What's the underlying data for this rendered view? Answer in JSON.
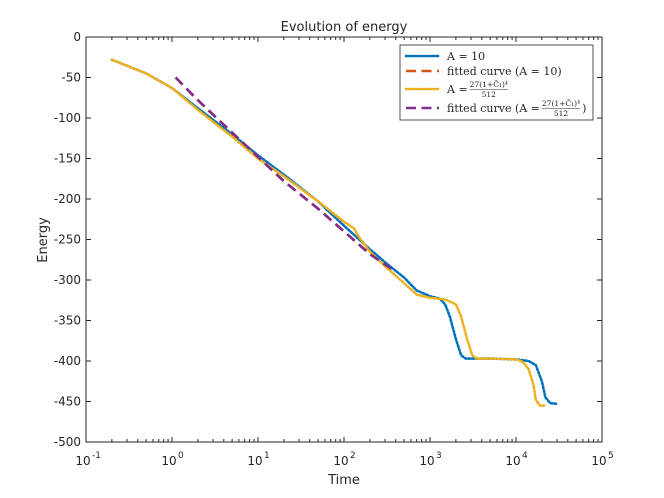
{
  "chart_data": {
    "type": "line",
    "title": "Evolution of energy",
    "xlabel": "Time",
    "ylabel": "Energy",
    "xscale": "log",
    "xlim": [
      0.1,
      100000
    ],
    "ylim": [
      -500,
      0
    ],
    "xticks": [
      {
        "value": 0.1,
        "base": "10",
        "exp": "-1"
      },
      {
        "value": 1,
        "base": "10",
        "exp": "0"
      },
      {
        "value": 10,
        "base": "10",
        "exp": "1"
      },
      {
        "value": 100,
        "base": "10",
        "exp": "2"
      },
      {
        "value": 1000,
        "base": "10",
        "exp": "3"
      },
      {
        "value": 10000,
        "base": "10",
        "exp": "4"
      },
      {
        "value": 100000,
        "base": "10",
        "exp": "5"
      }
    ],
    "yticks": [
      0,
      -50,
      -100,
      -150,
      -200,
      -250,
      -300,
      -350,
      -400,
      -450,
      -500
    ],
    "grid": false,
    "legend_position": "top-right",
    "series": [
      {
        "name": "A = 10",
        "legend": {
          "main": "A = 10"
        },
        "color": "#0072BD",
        "style": "dotted",
        "points": [
          [
            0.2,
            -28
          ],
          [
            0.5,
            -45
          ],
          [
            1,
            -63
          ],
          [
            2,
            -88
          ],
          [
            5,
            -120
          ],
          [
            10,
            -146
          ],
          [
            20,
            -170
          ],
          [
            50,
            -203
          ],
          [
            100,
            -233
          ],
          [
            200,
            -262
          ],
          [
            300,
            -278
          ],
          [
            500,
            -297
          ],
          [
            700,
            -313
          ],
          [
            1000,
            -320
          ],
          [
            1300,
            -323
          ],
          [
            1500,
            -330
          ],
          [
            1700,
            -345
          ],
          [
            2000,
            -373
          ],
          [
            2300,
            -393
          ],
          [
            2600,
            -397
          ],
          [
            3000,
            -397
          ],
          [
            5000,
            -397
          ],
          [
            10000,
            -398
          ],
          [
            14000,
            -400
          ],
          [
            17000,
            -405
          ],
          [
            20000,
            -425
          ],
          [
            22000,
            -445
          ],
          [
            25000,
            -452
          ],
          [
            30000,
            -453
          ]
        ]
      },
      {
        "name": "fitted curve (A = 10)",
        "legend": {
          "main": "fitted curve (A = 10)"
        },
        "color": "#D95319",
        "style": "dashed",
        "points": [
          [
            1.1,
            -50
          ],
          [
            2,
            -78
          ],
          [
            5,
            -118
          ],
          [
            10,
            -148
          ],
          [
            20,
            -178
          ],
          [
            50,
            -212
          ],
          [
            100,
            -240
          ],
          [
            200,
            -268
          ],
          [
            400,
            -290
          ]
        ]
      },
      {
        "name": "A = 27(1+C̄1)^4/512",
        "legend": {
          "prefix": "A = ",
          "numerator": "27(1+C̄₁)⁴",
          "denominator": "512",
          "suffix": ""
        },
        "color": "#EDB120",
        "style": "dotted",
        "points": [
          [
            0.2,
            -28
          ],
          [
            0.5,
            -45
          ],
          [
            1,
            -63
          ],
          [
            2,
            -90
          ],
          [
            5,
            -123
          ],
          [
            10,
            -150
          ],
          [
            20,
            -172
          ],
          [
            50,
            -203
          ],
          [
            100,
            -228
          ],
          [
            130,
            -236
          ],
          [
            150,
            -247
          ],
          [
            200,
            -265
          ],
          [
            300,
            -283
          ],
          [
            500,
            -304
          ],
          [
            700,
            -318
          ],
          [
            1000,
            -322
          ],
          [
            1500,
            -324
          ],
          [
            2000,
            -330
          ],
          [
            2300,
            -345
          ],
          [
            2700,
            -373
          ],
          [
            3100,
            -393
          ],
          [
            3500,
            -397
          ],
          [
            5000,
            -397
          ],
          [
            10000,
            -398
          ],
          [
            12000,
            -401
          ],
          [
            14000,
            -410
          ],
          [
            16000,
            -430
          ],
          [
            17000,
            -448
          ],
          [
            19000,
            -455
          ],
          [
            22000,
            -455
          ]
        ]
      },
      {
        "name": "fitted curve (A = 27(1+C̄1)^4/512)",
        "legend": {
          "prefix": "fitted curve (A = ",
          "numerator": "27(1+C̄₁)⁴",
          "denominator": "512",
          "suffix": ")"
        },
        "color": "#7E2F8E",
        "style": "dashed",
        "points": [
          [
            1.1,
            -50
          ],
          [
            2,
            -78
          ],
          [
            5,
            -118
          ],
          [
            10,
            -148
          ],
          [
            20,
            -178
          ],
          [
            50,
            -212
          ],
          [
            100,
            -240
          ],
          [
            200,
            -268
          ],
          [
            400,
            -290
          ]
        ]
      }
    ]
  }
}
